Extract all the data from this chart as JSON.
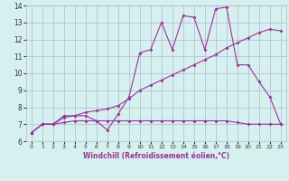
{
  "title": "",
  "xlabel": "Windchill (Refroidissement éolien,°C)",
  "background_color": "#d6f0f0",
  "line_color": "#993399",
  "grid_color": "#b0b8cc",
  "xlim": [
    -0.5,
    23.5
  ],
  "ylim": [
    6,
    14
  ],
  "xticks": [
    0,
    1,
    2,
    3,
    4,
    5,
    6,
    7,
    8,
    9,
    10,
    11,
    12,
    13,
    14,
    15,
    16,
    17,
    18,
    19,
    20,
    21,
    22,
    23
  ],
  "yticks": [
    6,
    7,
    8,
    9,
    10,
    11,
    12,
    13,
    14
  ],
  "line1_x": [
    0,
    1,
    2,
    3,
    4,
    5,
    6,
    7,
    8,
    9,
    10,
    11,
    12,
    13,
    14,
    15,
    16,
    17,
    18,
    19,
    20,
    21,
    22,
    23
  ],
  "line1_y": [
    6.5,
    7.0,
    7.0,
    7.5,
    7.5,
    7.5,
    7.2,
    6.65,
    7.6,
    8.6,
    11.2,
    11.4,
    13.0,
    11.4,
    13.4,
    13.3,
    11.4,
    13.8,
    13.9,
    10.5,
    10.5,
    9.5,
    8.6,
    7.0
  ],
  "line2_x": [
    0,
    1,
    2,
    3,
    4,
    5,
    6,
    7,
    8,
    9,
    10,
    11,
    12,
    13,
    14,
    15,
    16,
    17,
    18,
    19,
    20,
    21,
    22,
    23
  ],
  "line2_y": [
    6.5,
    7.0,
    7.0,
    7.4,
    7.5,
    7.7,
    7.8,
    7.9,
    8.1,
    8.5,
    9.0,
    9.3,
    9.6,
    9.9,
    10.2,
    10.5,
    10.8,
    11.1,
    11.5,
    11.8,
    12.1,
    12.4,
    12.6,
    12.5
  ],
  "line3_x": [
    0,
    1,
    2,
    3,
    4,
    5,
    6,
    7,
    8,
    9,
    10,
    11,
    12,
    13,
    14,
    15,
    16,
    17,
    18,
    19,
    20,
    21,
    22,
    23
  ],
  "line3_y": [
    6.5,
    7.0,
    7.0,
    7.1,
    7.2,
    7.2,
    7.2,
    7.2,
    7.2,
    7.2,
    7.2,
    7.2,
    7.2,
    7.2,
    7.2,
    7.2,
    7.2,
    7.2,
    7.2,
    7.1,
    7.0,
    7.0,
    7.0,
    7.0
  ],
  "markersize": 2.0,
  "linewidth": 0.8
}
